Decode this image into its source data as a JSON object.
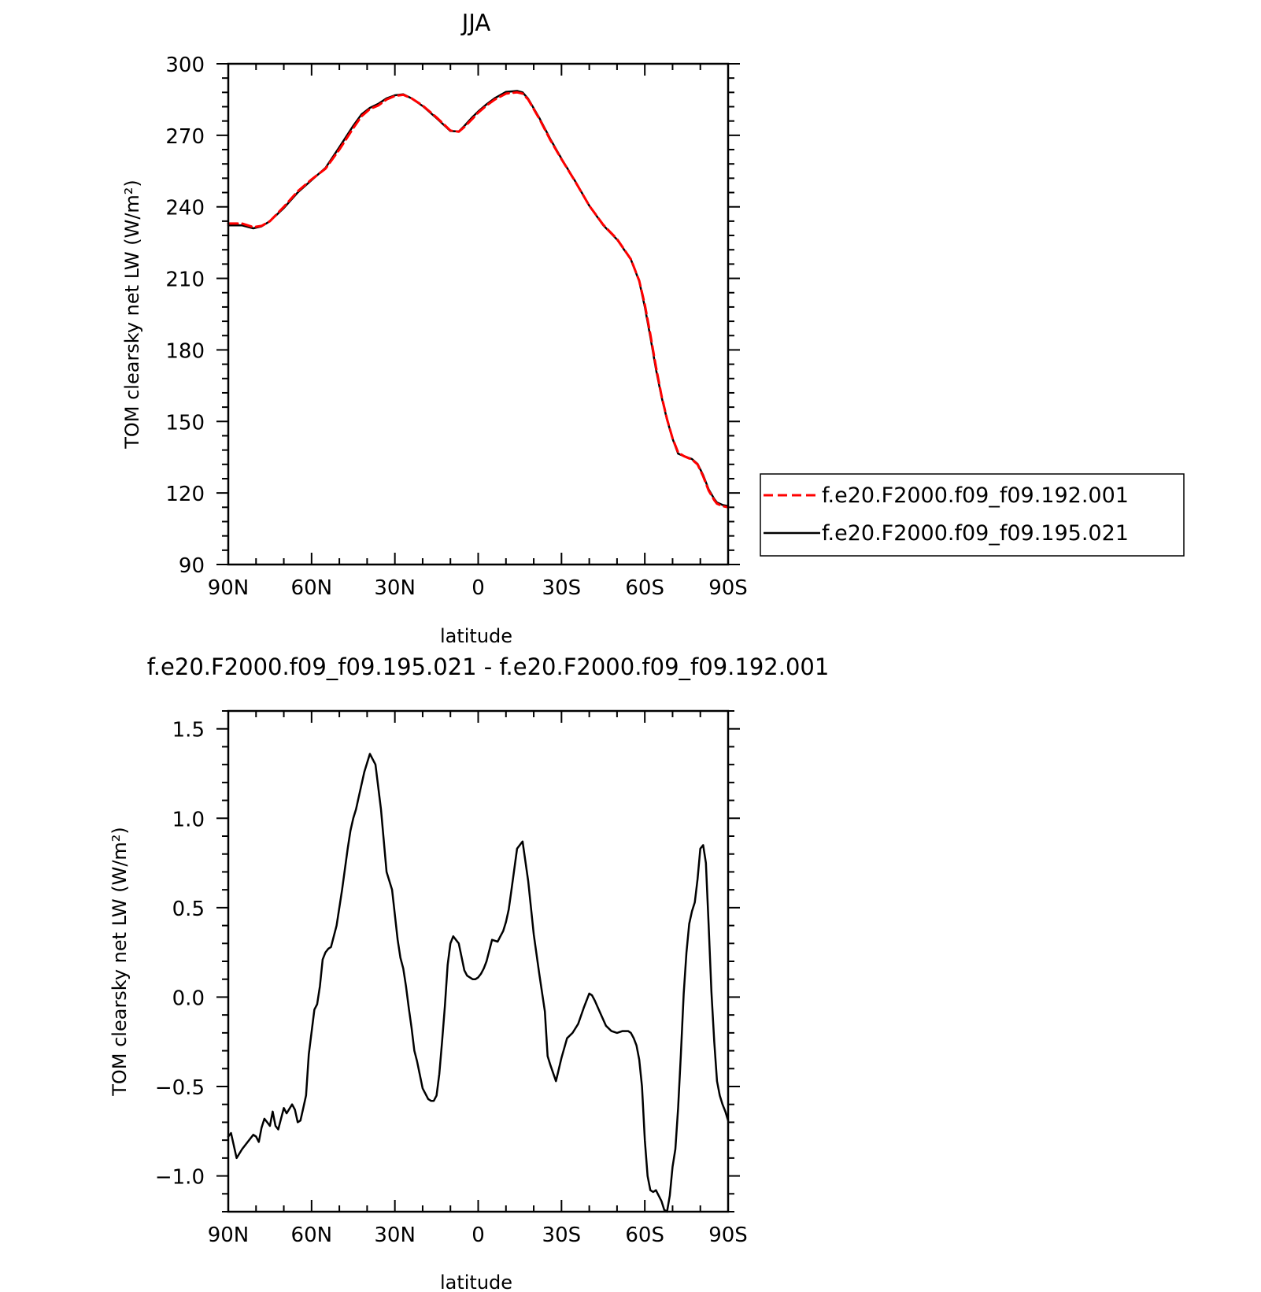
{
  "chart_data": [
    {
      "type": "line",
      "title": "JJA",
      "xlabel": "latitude",
      "ylabel": "TOM clearsky net LW (W/m²)",
      "xlim": [
        90,
        -90
      ],
      "ylim": [
        90,
        300
      ],
      "x_ticks": [
        90,
        60,
        30,
        0,
        -30,
        -60,
        -90
      ],
      "x_tick_labels": [
        "90N",
        "60N",
        "30N",
        "0",
        "30S",
        "60S",
        "90S"
      ],
      "y_ticks": [
        90,
        120,
        150,
        180,
        210,
        240,
        270,
        300
      ],
      "y_tick_labels": [
        "90",
        "120",
        "150",
        "180",
        "210",
        "240",
        "270",
        "300"
      ],
      "legend": "right",
      "grid": false,
      "series": [
        {
          "name": "f.e20.F2000.f09_f09.192.001",
          "color": "#ff0000",
          "dash": "dashed",
          "x": [
            90,
            85,
            81,
            78,
            75,
            70,
            65,
            60,
            55,
            50,
            45,
            42,
            39,
            36,
            33,
            30,
            27,
            24,
            20,
            15,
            10,
            7,
            5,
            2,
            0,
            -3,
            -6,
            -10,
            -14,
            -16,
            -18,
            -22,
            -26,
            -30,
            -35,
            -40,
            -45,
            -50,
            -55,
            -58,
            -60,
            -62,
            -64,
            -66,
            -68,
            -70,
            -72,
            -74,
            -77,
            -79,
            -81,
            -83,
            -85,
            -86,
            -88,
            -90
          ],
          "y": [
            233,
            233,
            231.5,
            232,
            234,
            240,
            246.5,
            251.5,
            256,
            264,
            273,
            278,
            281,
            282.5,
            285,
            286.5,
            287,
            285.5,
            282.5,
            277.5,
            272,
            271.5,
            273.5,
            277,
            279.5,
            282.5,
            285,
            287.5,
            288,
            287.5,
            285,
            277,
            268,
            260,
            250.5,
            240.5,
            232.5,
            226.5,
            218,
            209,
            199,
            186.5,
            173,
            161,
            151,
            143,
            137,
            135.5,
            134,
            132,
            127,
            121,
            117,
            115.5,
            114.5,
            114
          ]
        },
        {
          "name": "f.e20.F2000.f09_f09.195.021",
          "color": "#000000",
          "dash": "solid",
          "x": [
            90,
            85,
            81,
            78,
            75,
            70,
            65,
            60,
            55,
            50,
            45,
            42,
            39,
            36,
            33,
            30,
            27,
            24,
            20,
            15,
            10,
            7,
            5,
            2,
            0,
            -3,
            -6,
            -10,
            -14,
            -16,
            -18,
            -22,
            -26,
            -30,
            -35,
            -40,
            -45,
            -50,
            -55,
            -58,
            -60,
            -62,
            -64,
            -66,
            -68,
            -70,
            -72,
            -74,
            -77,
            -79,
            -81,
            -83,
            -85,
            -86,
            -88,
            -90
          ],
          "y": [
            232.2,
            232.2,
            231,
            231.8,
            234,
            239.5,
            246,
            251.2,
            256.3,
            265,
            274,
            278.8,
            281.5,
            283.2,
            285.5,
            286.8,
            287.2,
            285.5,
            282.3,
            277.2,
            271.8,
            271.6,
            273.9,
            277.7,
            280,
            283,
            285.6,
            288.2,
            288.6,
            288,
            285.3,
            277.3,
            268.4,
            260.2,
            250.6,
            240.5,
            232.3,
            226.3,
            217.9,
            208.8,
            198,
            185.5,
            172,
            160.5,
            150.8,
            142.8,
            136.5,
            135.5,
            134.2,
            132.2,
            127.5,
            121.5,
            117.5,
            116,
            115,
            114.5
          ]
        }
      ]
    },
    {
      "type": "line",
      "title": "f.e20.F2000.f09_f09.195.021 - f.e20.F2000.f09_f09.192.001",
      "xlabel": "latitude",
      "ylabel": "TOM clearsky net LW (W/m²)",
      "xlim": [
        90,
        -90
      ],
      "ylim": [
        -1.2,
        1.6
      ],
      "x_ticks": [
        90,
        60,
        30,
        0,
        -30,
        -60,
        -90
      ],
      "x_tick_labels": [
        "90N",
        "60N",
        "30N",
        "0",
        "30S",
        "60S",
        "90S"
      ],
      "y_ticks": [
        -1.0,
        -0.5,
        0.0,
        0.5,
        1.0,
        1.5
      ],
      "y_tick_labels": [
        "−1.0",
        "−0.5",
        "0.0",
        "0.5",
        "1.0",
        "1.5"
      ],
      "grid": false,
      "series": [
        {
          "color": "#000000",
          "x": [
            90,
            89,
            87,
            85,
            83,
            81,
            80,
            79,
            78,
            77,
            76,
            75,
            74,
            73,
            72,
            71,
            70,
            69,
            67,
            66,
            65,
            64,
            63,
            62,
            61,
            59,
            58,
            57,
            56,
            55,
            54,
            53,
            51,
            49,
            47,
            46,
            45,
            44,
            43,
            41,
            39,
            37,
            35,
            33,
            31,
            29,
            28,
            27,
            26,
            25,
            24,
            23,
            22,
            20,
            18,
            17,
            16,
            15,
            14,
            13,
            12,
            11,
            10,
            9,
            7,
            5,
            4,
            3,
            2,
            1,
            0,
            -1,
            -2,
            -3,
            -5,
            -7,
            -8,
            -9,
            -10,
            -11,
            -12,
            -14,
            -16,
            -18,
            -20,
            -22,
            -24,
            -25,
            -26,
            -28,
            -30,
            -32,
            -34,
            -36,
            -38,
            -40,
            -41,
            -42,
            -44,
            -46,
            -48,
            -50,
            -52,
            -54,
            -55,
            -56,
            -57,
            -58,
            -59,
            -60,
            -61,
            -62,
            -63,
            -64,
            -65,
            -66,
            -67,
            -68,
            -69,
            -70,
            -71,
            -72,
            -73,
            -74,
            -75,
            -76,
            -77,
            -78,
            -79,
            -80,
            -81,
            -82,
            -83,
            -84,
            -85,
            -86,
            -87,
            -88,
            -89,
            -90
          ],
          "y": [
            -0.78,
            -0.76,
            -0.9,
            -0.85,
            -0.81,
            -0.77,
            -0.78,
            -0.81,
            -0.73,
            -0.68,
            -0.7,
            -0.72,
            -0.64,
            -0.72,
            -0.74,
            -0.68,
            -0.62,
            -0.65,
            -0.6,
            -0.63,
            -0.7,
            -0.69,
            -0.62,
            -0.55,
            -0.32,
            -0.07,
            -0.04,
            0.06,
            0.21,
            0.25,
            0.27,
            0.28,
            0.4,
            0.6,
            0.83,
            0.93,
            1.0,
            1.05,
            1.12,
            1.26,
            1.36,
            1.3,
            1.05,
            0.7,
            0.6,
            0.32,
            0.22,
            0.16,
            0.06,
            -0.06,
            -0.17,
            -0.3,
            -0.36,
            -0.51,
            -0.57,
            -0.58,
            -0.58,
            -0.55,
            -0.43,
            -0.25,
            -0.05,
            0.18,
            0.3,
            0.34,
            0.3,
            0.15,
            0.12,
            0.11,
            0.1,
            0.1,
            0.11,
            0.13,
            0.16,
            0.2,
            0.32,
            0.31,
            0.34,
            0.37,
            0.42,
            0.49,
            0.6,
            0.83,
            0.87,
            0.65,
            0.35,
            0.13,
            -0.08,
            -0.33,
            -0.38,
            -0.47,
            -0.34,
            -0.23,
            -0.2,
            -0.15,
            -0.06,
            0.02,
            0.01,
            -0.02,
            -0.09,
            -0.16,
            -0.19,
            -0.2,
            -0.19,
            -0.19,
            -0.2,
            -0.23,
            -0.27,
            -0.35,
            -0.5,
            -0.8,
            -1.0,
            -1.08,
            -1.09,
            -1.08,
            -1.11,
            -1.14,
            -1.19,
            -1.2,
            -1.11,
            -0.95,
            -0.85,
            -0.62,
            -0.32,
            0.02,
            0.25,
            0.41,
            0.48,
            0.53,
            0.66,
            0.83,
            0.85,
            0.75,
            0.4,
            0.03,
            -0.25,
            -0.47,
            -0.55,
            -0.6,
            -0.64,
            -0.69
          ]
        }
      ]
    }
  ]
}
